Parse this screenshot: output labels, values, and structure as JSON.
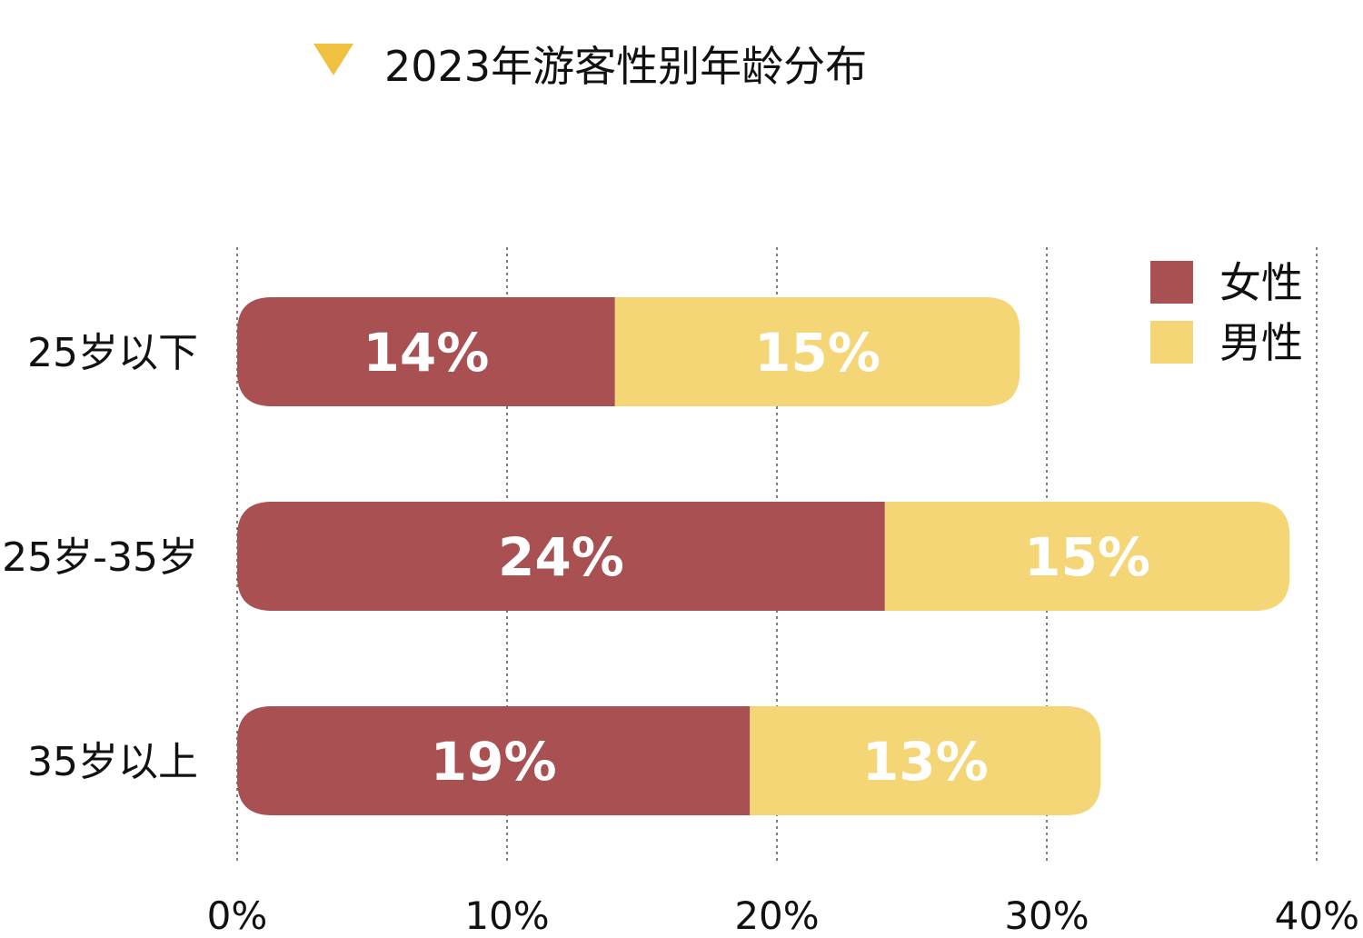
{
  "chart_data": {
    "type": "bar",
    "orientation": "horizontal",
    "stacked": true,
    "title": "2023年游客性别年龄分布",
    "categories": [
      "25岁以下",
      "25岁-35岁",
      "35岁以上"
    ],
    "series": [
      {
        "name": "女性",
        "values": [
          14,
          24,
          19
        ],
        "labels": [
          "14%",
          "24%",
          "19%"
        ],
        "color": "#A95052"
      },
      {
        "name": "男性",
        "values": [
          15,
          15,
          13
        ],
        "labels": [
          "15%",
          "15%",
          "13%"
        ],
        "color": "#F5D677"
      }
    ],
    "xlim": [
      0,
      40
    ],
    "xticks": [
      0,
      10,
      20,
      30,
      40
    ],
    "xtick_labels": [
      "0%",
      "10%",
      "20%",
      "30%",
      "40%"
    ],
    "grid": "vertical dashed",
    "legend_position": "top-right",
    "title_marker_color": "#F0C040"
  }
}
